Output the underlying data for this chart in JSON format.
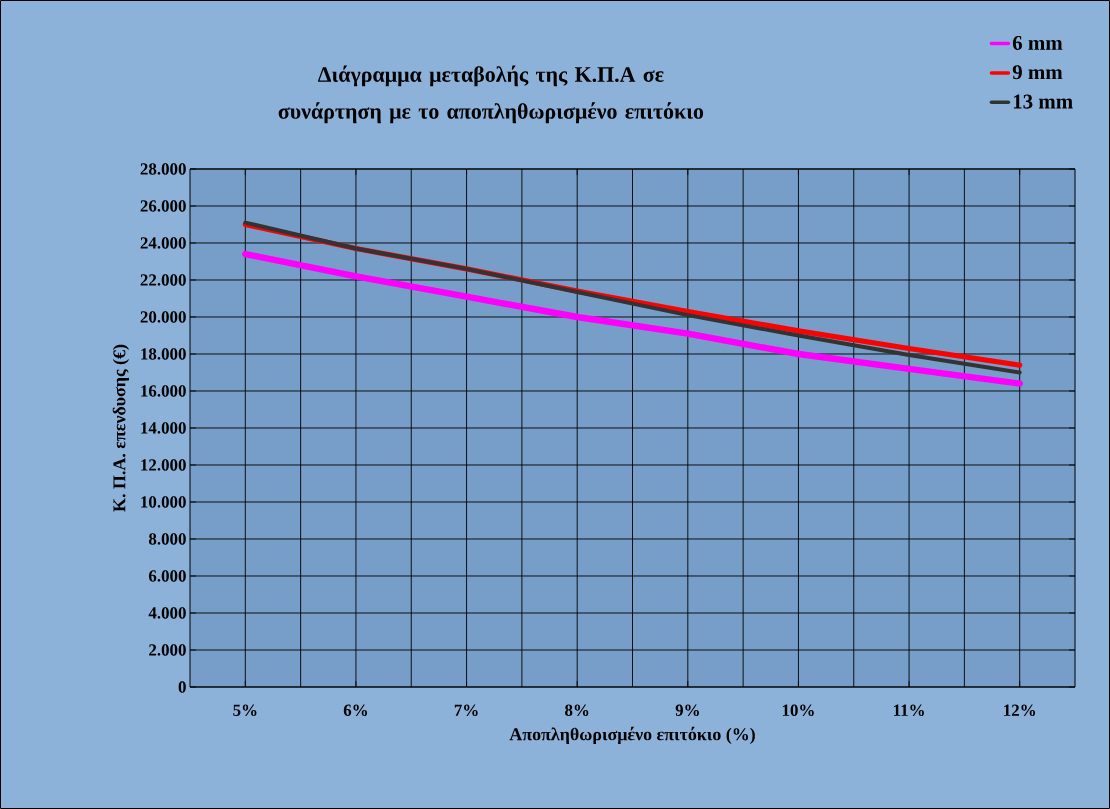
{
  "chart_data": {
    "type": "line",
    "title": "Διάγραμμα μεταβολής της Κ.Π.Α σε συνάρτηση με το αποπληθωρισμένο επιτόκιο",
    "xlabel": "Αποπληθωρισμένο επιτόκιο (%)",
    "ylabel": "Κ. Π.Α. επενδυσης (€)",
    "categories": [
      "5%",
      "6%",
      "7%",
      "8%",
      "9%",
      "10%",
      "11%",
      "12%"
    ],
    "series": [
      {
        "name": "6 mm",
        "color": "#ff00ff",
        "values": [
          23400,
          22200,
          21100,
          20000,
          19100,
          18000,
          17200,
          16400
        ]
      },
      {
        "name": "9 mm",
        "color": "#ff0000",
        "values": [
          25000,
          23700,
          22600,
          21400,
          20300,
          19250,
          18300,
          17400
        ]
      },
      {
        "name": "13 mm",
        "color": "#333333",
        "values": [
          25100,
          23700,
          22600,
          21350,
          20100,
          19000,
          17950,
          17000
        ]
      }
    ],
    "ylim": [
      0,
      28000
    ],
    "yticks": [
      0,
      {
        "value": 2000,
        "label": "2.000"
      },
      {
        "value": 4000,
        "label": "4.000"
      },
      {
        "value": 6000,
        "label": "6.000"
      },
      {
        "value": 8000,
        "label": "8.000"
      },
      {
        "value": 10000,
        "label": "10.000"
      },
      {
        "value": 12000,
        "label": "12.000"
      },
      {
        "value": 14000,
        "label": "14.000"
      },
      {
        "value": 16000,
        "label": "16.000"
      },
      {
        "value": 18000,
        "label": "18.000"
      },
      {
        "value": 20000,
        "label": "20.000"
      },
      {
        "value": 22000,
        "label": "22.000"
      },
      {
        "value": 24000,
        "label": "24.000"
      },
      {
        "value": 26000,
        "label": "26.000"
      },
      {
        "value": 28000,
        "label": "28.000"
      }
    ],
    "grid": true,
    "legend": "top right",
    "marker": "none",
    "line_style": "solid"
  }
}
